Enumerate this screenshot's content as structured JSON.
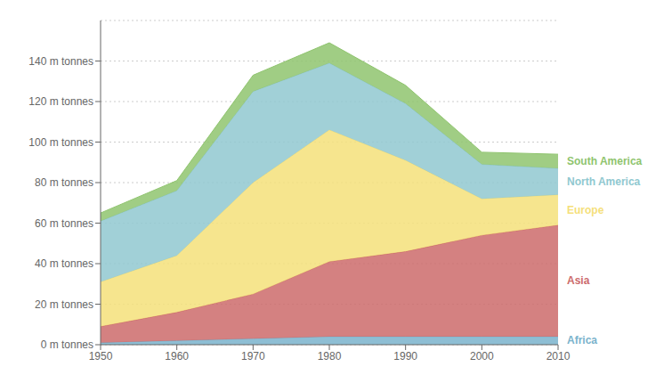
{
  "chart_data": {
    "type": "area",
    "stacked": true,
    "grid": true,
    "x": [
      1950,
      1960,
      1970,
      1980,
      1990,
      2000,
      2010
    ],
    "xlim": [
      1950,
      2010
    ],
    "xticks": [
      1950,
      1960,
      1970,
      1980,
      1990,
      2000,
      2010
    ],
    "ylim": [
      0,
      160
    ],
    "yticks": [
      {
        "value": 0,
        "label": "0 m tonnes"
      },
      {
        "value": 20,
        "label": "20 m tonnes"
      },
      {
        "value": 40,
        "label": "40 m tonnes"
      },
      {
        "value": 60,
        "label": "60 m tonnes"
      },
      {
        "value": 80,
        "label": "80 m tonnes"
      },
      {
        "value": 100,
        "label": "100 m tonnes"
      },
      {
        "value": 120,
        "label": "120 m tonnes"
      },
      {
        "value": 140,
        "label": "140 m tonnes"
      }
    ],
    "series": [
      {
        "name": "Africa",
        "color": "#7ab3cc",
        "values": [
          1,
          2,
          3,
          4,
          4,
          4,
          4
        ]
      },
      {
        "name": "Asia",
        "color": "#cc6b6b",
        "values": [
          8,
          14,
          22,
          37,
          42,
          50,
          55
        ]
      },
      {
        "name": "Europe",
        "color": "#f5e07a",
        "values": [
          22,
          28,
          55,
          65,
          45,
          18,
          15
        ]
      },
      {
        "name": "North America",
        "color": "#90c8d0",
        "values": [
          30,
          32,
          45,
          33,
          28,
          17,
          13
        ]
      },
      {
        "name": "South America",
        "color": "#8fc46e",
        "values": [
          4,
          5,
          8,
          10,
          9,
          6,
          7
        ]
      }
    ]
  }
}
